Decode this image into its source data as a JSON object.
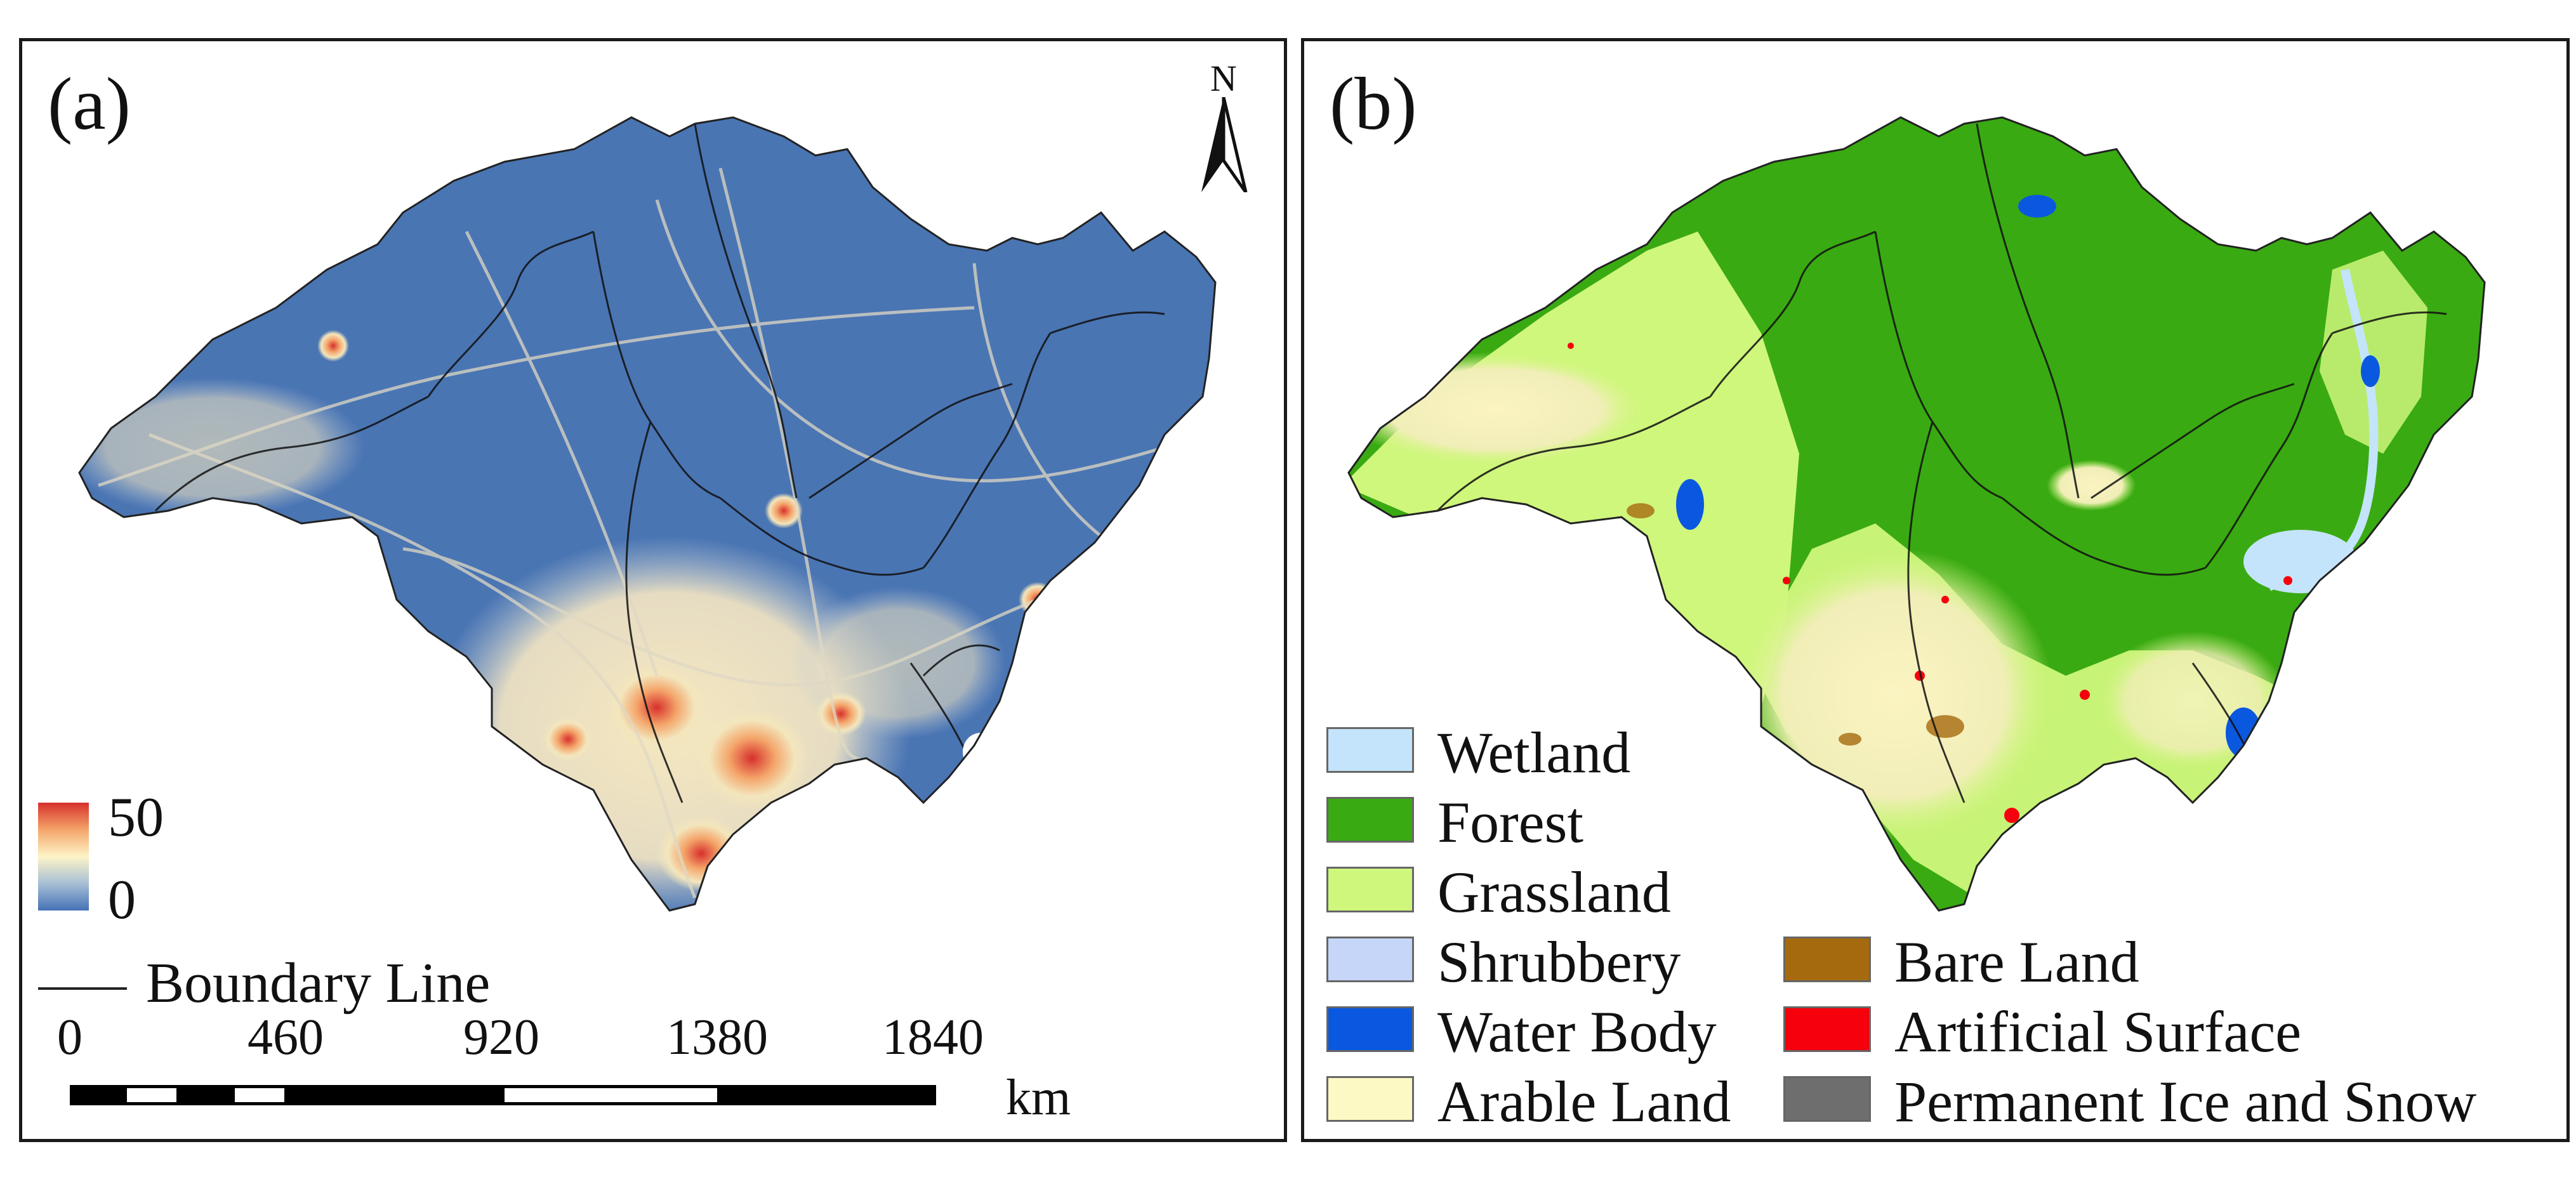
{
  "panels": [
    {
      "label": "(a)",
      "north_arrow": "N",
      "ramp": {
        "max": "50",
        "min": "0",
        "colors": [
          "#d7302c",
          "#fdf4c7",
          "#4472b5"
        ]
      },
      "boundary_legend": "Boundary Line",
      "scalebar": {
        "ticks": [
          "0",
          "460",
          "920",
          "1380",
          "1840"
        ],
        "unit": "km"
      }
    },
    {
      "label": "(b)",
      "legend": [
        {
          "label": "Wetland",
          "color": "#c4e4fb"
        },
        {
          "label": "Forest",
          "color": "#3aaa12"
        },
        {
          "label": "Grassland",
          "color": "#cff77c"
        },
        {
          "label": "Shrubbery",
          "color": "#c6d6f9"
        },
        {
          "label": "Water Body",
          "color": "#0b58e0"
        },
        {
          "label": "Arable Land",
          "color": "#fdf9c4"
        },
        {
          "label": "Bare Land",
          "color": "#a66a0e"
        },
        {
          "label": "Artificial Surface",
          "color": "#f5000c"
        },
        {
          "label": "Permanent Ice and Snow",
          "color": "#6e6e6e"
        }
      ]
    }
  ]
}
